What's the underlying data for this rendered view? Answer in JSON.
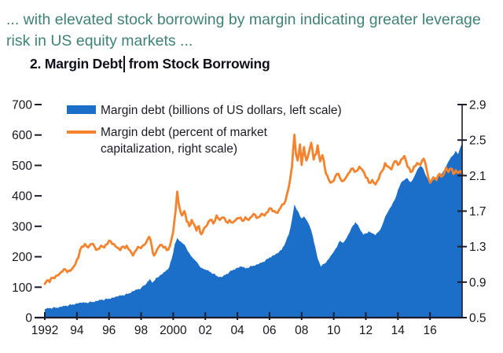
{
  "header": {
    "intro_lines": [
      "... with elevated stock borrowing by margin indicating greater leverage",
      "risk in US equity markets ..."
    ],
    "title_before_cursor": "2. Margin Debt",
    "title_after_cursor": "from Stock Borrowing"
  },
  "legend": [
    {
      "swatch": "area-swatch",
      "lines": [
        "Margin debt (billions of US dollars, left scale)",
        ""
      ]
    },
    {
      "swatch": "line-swatch",
      "lines": [
        "Margin debt (percent of market",
        "capitalization, right scale)"
      ]
    }
  ],
  "colors": {
    "intro_text": "#3f8273",
    "title_text": "#10101a",
    "axis_text": "#16161f",
    "axis_line": "#1c1c2e",
    "margin_debt_area": "#1b6fc8",
    "margin_debt_line": "#f5822d",
    "background": "#ffffff"
  },
  "chart_data": {
    "type": "area",
    "title": "2. Margin Debt from Stock Borrowing",
    "xlabel": "",
    "ylabel_left": "Margin debt (billions of US dollars)",
    "ylabel_right": "Margin debt (percent of market capitalization)",
    "grid": false,
    "legend_position": "top-left",
    "x_axis": {
      "range": [
        1992,
        2018
      ],
      "tick_years": [
        1992,
        1994,
        1996,
        1998,
        2000,
        2002,
        2004,
        2006,
        2008,
        2010,
        2012,
        2014,
        2016
      ],
      "tick_labels": [
        "1992",
        "94",
        "96",
        "98",
        "2000",
        "02",
        "04",
        "06",
        "08",
        "10",
        "12",
        "14",
        "16"
      ]
    },
    "left_axis": {
      "range": [
        0,
        700
      ],
      "tick_values": [
        700,
        600,
        500,
        400,
        300,
        200,
        100,
        0
      ],
      "tick_labels": [
        "700",
        "600",
        "500",
        "400",
        "300",
        "200",
        "100",
        "0"
      ]
    },
    "right_axis": {
      "range": [
        0.5,
        2.9
      ],
      "tick_values": [
        2.9,
        2.5,
        2.1,
        1.7,
        1.3,
        0.9,
        0.5
      ],
      "tick_labels": [
        "2.9",
        "2.5",
        "2.1",
        "1.7",
        "1.3",
        "0.9",
        "0.5"
      ]
    },
    "series": [
      {
        "name": "Margin debt (billions of US dollars, left scale)",
        "axis": "left",
        "style": "area",
        "color": "#1b6fc8",
        "points": [
          [
            1992.0,
            28
          ],
          [
            1992.25,
            30
          ],
          [
            1992.5,
            32
          ],
          [
            1992.75,
            33
          ],
          [
            1993.0,
            36
          ],
          [
            1993.25,
            38
          ],
          [
            1993.5,
            41
          ],
          [
            1993.75,
            44
          ],
          [
            1994.0,
            47
          ],
          [
            1994.25,
            49
          ],
          [
            1994.5,
            48
          ],
          [
            1994.75,
            50
          ],
          [
            1995.0,
            52
          ],
          [
            1995.25,
            55
          ],
          [
            1995.5,
            58
          ],
          [
            1995.75,
            60
          ],
          [
            1996.0,
            63
          ],
          [
            1996.25,
            66
          ],
          [
            1996.5,
            69
          ],
          [
            1996.75,
            72
          ],
          [
            1997.0,
            75
          ],
          [
            1997.25,
            80
          ],
          [
            1997.5,
            87
          ],
          [
            1997.75,
            92
          ],
          [
            1998.0,
            97
          ],
          [
            1998.2,
            106
          ],
          [
            1998.4,
            118
          ],
          [
            1998.55,
            127
          ],
          [
            1998.7,
            114
          ],
          [
            1998.85,
            122
          ],
          [
            1999.0,
            132
          ],
          [
            1999.25,
            141
          ],
          [
            1999.5,
            151
          ],
          [
            1999.75,
            166
          ],
          [
            1999.9,
            192
          ],
          [
            2000.1,
            242
          ],
          [
            2000.25,
            262
          ],
          [
            2000.4,
            251
          ],
          [
            2000.6,
            243
          ],
          [
            2000.8,
            231
          ],
          [
            2001.0,
            212
          ],
          [
            2001.2,
            197
          ],
          [
            2001.4,
            186
          ],
          [
            2001.6,
            172
          ],
          [
            2001.8,
            163
          ],
          [
            2002.0,
            158
          ],
          [
            2002.25,
            151
          ],
          [
            2002.5,
            144
          ],
          [
            2002.75,
            136
          ],
          [
            2003.0,
            133
          ],
          [
            2003.25,
            140
          ],
          [
            2003.5,
            150
          ],
          [
            2003.75,
            158
          ],
          [
            2004.0,
            164
          ],
          [
            2004.25,
            168
          ],
          [
            2004.5,
            161
          ],
          [
            2004.75,
            166
          ],
          [
            2005.0,
            171
          ],
          [
            2005.25,
            175
          ],
          [
            2005.5,
            180
          ],
          [
            2005.75,
            188
          ],
          [
            2006.0,
            198
          ],
          [
            2006.25,
            205
          ],
          [
            2006.5,
            211
          ],
          [
            2006.75,
            222
          ],
          [
            2007.0,
            247
          ],
          [
            2007.2,
            273
          ],
          [
            2007.4,
            322
          ],
          [
            2007.55,
            372
          ],
          [
            2007.7,
            354
          ],
          [
            2007.85,
            341
          ],
          [
            2008.0,
            326
          ],
          [
            2008.15,
            333
          ],
          [
            2008.3,
            321
          ],
          [
            2008.5,
            301
          ],
          [
            2008.7,
            266
          ],
          [
            2008.85,
            232
          ],
          [
            2009.0,
            194
          ],
          [
            2009.2,
            167
          ],
          [
            2009.4,
            177
          ],
          [
            2009.6,
            188
          ],
          [
            2009.8,
            202
          ],
          [
            2010.0,
            216
          ],
          [
            2010.2,
            232
          ],
          [
            2010.4,
            253
          ],
          [
            2010.6,
            246
          ],
          [
            2010.8,
            262
          ],
          [
            2011.0,
            281
          ],
          [
            2011.2,
            303
          ],
          [
            2011.35,
            314
          ],
          [
            2011.5,
            305
          ],
          [
            2011.7,
            284
          ],
          [
            2011.85,
            272
          ],
          [
            2012.0,
            276
          ],
          [
            2012.2,
            284
          ],
          [
            2012.4,
            277
          ],
          [
            2012.6,
            271
          ],
          [
            2012.8,
            282
          ],
          [
            2013.0,
            301
          ],
          [
            2013.2,
            331
          ],
          [
            2013.4,
            350
          ],
          [
            2013.6,
            366
          ],
          [
            2013.8,
            387
          ],
          [
            2014.0,
            419
          ],
          [
            2014.2,
            444
          ],
          [
            2014.4,
            452
          ],
          [
            2014.6,
            458
          ],
          [
            2014.8,
            445
          ],
          [
            2015.0,
            461
          ],
          [
            2015.2,
            485
          ],
          [
            2015.4,
            498
          ],
          [
            2015.6,
            487
          ],
          [
            2015.8,
            461
          ],
          [
            2016.0,
            447
          ],
          [
            2016.2,
            452
          ],
          [
            2016.4,
            459
          ],
          [
            2016.6,
            467
          ],
          [
            2016.8,
            478
          ],
          [
            2017.0,
            496
          ],
          [
            2017.2,
            517
          ],
          [
            2017.4,
            531
          ],
          [
            2017.6,
            548
          ],
          [
            2017.75,
            537
          ],
          [
            2017.9,
            561
          ],
          [
            2018.0,
            572
          ]
        ]
      },
      {
        "name": "Margin debt (percent of market capitalization, right scale)",
        "axis": "right",
        "style": "line",
        "color": "#f5822d",
        "points": [
          [
            1992.0,
            0.88
          ],
          [
            1992.15,
            0.92
          ],
          [
            1992.3,
            0.9
          ],
          [
            1992.5,
            0.95
          ],
          [
            1992.7,
            0.97
          ],
          [
            1992.9,
            0.99
          ],
          [
            1993.1,
            1.02
          ],
          [
            1993.3,
            1.04
          ],
          [
            1993.5,
            1.03
          ],
          [
            1993.7,
            1.05
          ],
          [
            1993.9,
            1.1
          ],
          [
            1994.1,
            1.18
          ],
          [
            1994.3,
            1.3
          ],
          [
            1994.5,
            1.33
          ],
          [
            1994.7,
            1.29
          ],
          [
            1994.9,
            1.33
          ],
          [
            1995.1,
            1.3
          ],
          [
            1995.3,
            1.27
          ],
          [
            1995.5,
            1.31
          ],
          [
            1995.7,
            1.29
          ],
          [
            1995.9,
            1.33
          ],
          [
            1996.1,
            1.36
          ],
          [
            1996.3,
            1.33
          ],
          [
            1996.5,
            1.29
          ],
          [
            1996.7,
            1.26
          ],
          [
            1996.9,
            1.3
          ],
          [
            1997.1,
            1.31
          ],
          [
            1997.3,
            1.26
          ],
          [
            1997.5,
            1.2
          ],
          [
            1997.7,
            1.26
          ],
          [
            1997.9,
            1.29
          ],
          [
            1998.1,
            1.31
          ],
          [
            1998.3,
            1.34
          ],
          [
            1998.5,
            1.41
          ],
          [
            1998.65,
            1.32
          ],
          [
            1998.8,
            1.2
          ],
          [
            1999.0,
            1.27
          ],
          [
            1999.2,
            1.32
          ],
          [
            1999.4,
            1.29
          ],
          [
            1999.6,
            1.26
          ],
          [
            1999.8,
            1.31
          ],
          [
            2000.0,
            1.47
          ],
          [
            2000.15,
            1.7
          ],
          [
            2000.25,
            1.92
          ],
          [
            2000.4,
            1.73
          ],
          [
            2000.55,
            1.65
          ],
          [
            2000.7,
            1.7
          ],
          [
            2000.85,
            1.58
          ],
          [
            2001.0,
            1.53
          ],
          [
            2001.15,
            1.6
          ],
          [
            2001.3,
            1.55
          ],
          [
            2001.45,
            1.48
          ],
          [
            2001.6,
            1.53
          ],
          [
            2001.75,
            1.44
          ],
          [
            2001.9,
            1.5
          ],
          [
            2002.1,
            1.54
          ],
          [
            2002.3,
            1.6
          ],
          [
            2002.5,
            1.56
          ],
          [
            2002.7,
            1.65
          ],
          [
            2002.9,
            1.6
          ],
          [
            2003.1,
            1.63
          ],
          [
            2003.3,
            1.58
          ],
          [
            2003.5,
            1.6
          ],
          [
            2003.7,
            1.57
          ],
          [
            2003.9,
            1.6
          ],
          [
            2004.1,
            1.62
          ],
          [
            2004.3,
            1.59
          ],
          [
            2004.5,
            1.63
          ],
          [
            2004.7,
            1.6
          ],
          [
            2004.9,
            1.64
          ],
          [
            2005.1,
            1.66
          ],
          [
            2005.3,
            1.63
          ],
          [
            2005.5,
            1.67
          ],
          [
            2005.7,
            1.65
          ],
          [
            2005.9,
            1.69
          ],
          [
            2006.1,
            1.73
          ],
          [
            2006.3,
            1.7
          ],
          [
            2006.5,
            1.68
          ],
          [
            2006.7,
            1.74
          ],
          [
            2006.9,
            1.78
          ],
          [
            2007.1,
            1.9
          ],
          [
            2007.25,
            2.02
          ],
          [
            2007.4,
            2.2
          ],
          [
            2007.55,
            2.56
          ],
          [
            2007.65,
            2.34
          ],
          [
            2007.75,
            2.27
          ],
          [
            2007.9,
            2.45
          ],
          [
            2008.0,
            2.22
          ],
          [
            2008.15,
            2.42
          ],
          [
            2008.3,
            2.27
          ],
          [
            2008.45,
            2.36
          ],
          [
            2008.6,
            2.47
          ],
          [
            2008.75,
            2.28
          ],
          [
            2008.9,
            2.34
          ],
          [
            2009.0,
            2.44
          ],
          [
            2009.15,
            2.26
          ],
          [
            2009.3,
            2.33
          ],
          [
            2009.45,
            2.18
          ],
          [
            2009.6,
            2.1
          ],
          [
            2009.8,
            2.02
          ],
          [
            2010.0,
            2.04
          ],
          [
            2010.2,
            2.12
          ],
          [
            2010.4,
            2.07
          ],
          [
            2010.6,
            2.04
          ],
          [
            2010.8,
            2.09
          ],
          [
            2011.0,
            2.14
          ],
          [
            2011.2,
            2.18
          ],
          [
            2011.4,
            2.15
          ],
          [
            2011.6,
            2.2
          ],
          [
            2011.8,
            2.16
          ],
          [
            2012.0,
            2.08
          ],
          [
            2012.2,
            2.02
          ],
          [
            2012.4,
            2.05
          ],
          [
            2012.6,
            2.0
          ],
          [
            2012.8,
            2.06
          ],
          [
            2013.0,
            2.15
          ],
          [
            2013.2,
            2.24
          ],
          [
            2013.4,
            2.2
          ],
          [
            2013.6,
            2.17
          ],
          [
            2013.8,
            2.26
          ],
          [
            2014.0,
            2.22
          ],
          [
            2014.2,
            2.28
          ],
          [
            2014.4,
            2.32
          ],
          [
            2014.6,
            2.2
          ],
          [
            2014.8,
            2.14
          ],
          [
            2015.0,
            2.2
          ],
          [
            2015.2,
            2.24
          ],
          [
            2015.4,
            2.22
          ],
          [
            2015.6,
            2.29
          ],
          [
            2015.8,
            2.16
          ],
          [
            2016.0,
            2.02
          ],
          [
            2016.2,
            2.08
          ],
          [
            2016.4,
            2.05
          ],
          [
            2016.6,
            2.12
          ],
          [
            2016.8,
            2.1
          ],
          [
            2017.0,
            2.19
          ],
          [
            2017.15,
            2.14
          ],
          [
            2017.3,
            2.18
          ],
          [
            2017.45,
            2.12
          ],
          [
            2017.6,
            2.16
          ],
          [
            2017.75,
            2.13
          ],
          [
            2017.9,
            2.15
          ],
          [
            2018.0,
            2.12
          ]
        ]
      }
    ]
  }
}
